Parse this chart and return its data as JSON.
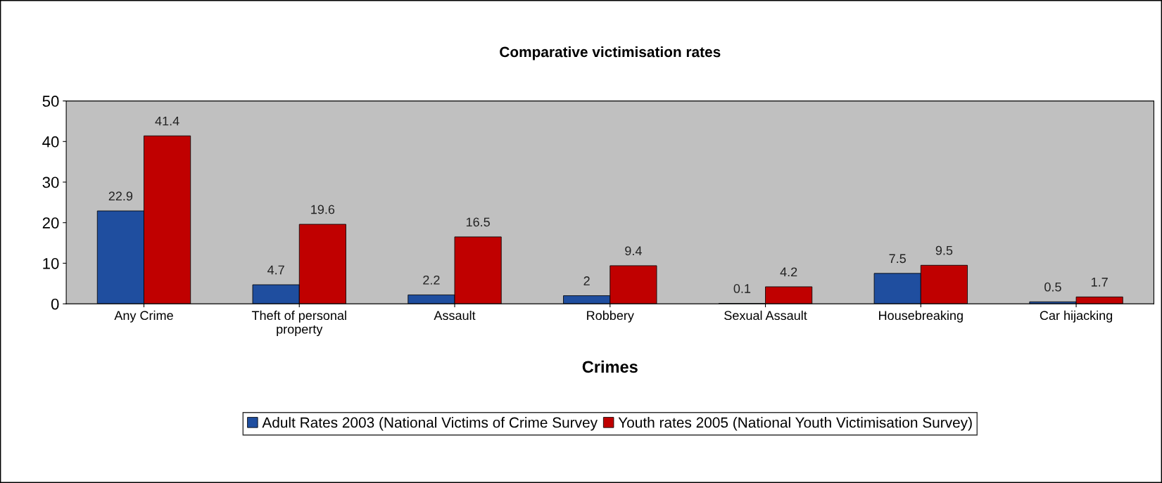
{
  "chart_data": {
    "type": "bar",
    "title": "Comparative victimisation rates",
    "xlabel": "Crimes",
    "categories": [
      "Any Crime",
      "Theft of personal\nproperty",
      "Assault",
      "Robbery",
      "Sexual Assault",
      "Housebreaking",
      "Car hijacking"
    ],
    "series": [
      {
        "name": "Adult Rates 2003 (National Victims of Crime Survey",
        "color": "#1f4e9f",
        "values": [
          22.9,
          4.7,
          2.2,
          2,
          0.1,
          7.5,
          0.5
        ]
      },
      {
        "name": "Youth rates 2005 (National Youth Victimisation Survey)",
        "color": "#c00000",
        "values": [
          41.4,
          19.6,
          16.5,
          9.4,
          4.2,
          9.5,
          1.7
        ]
      }
    ],
    "ylim": [
      0,
      50
    ],
    "yticks": [
      0,
      10,
      20,
      30,
      40,
      50
    ],
    "grid": false,
    "legend": "bottom",
    "data_labels": true
  }
}
